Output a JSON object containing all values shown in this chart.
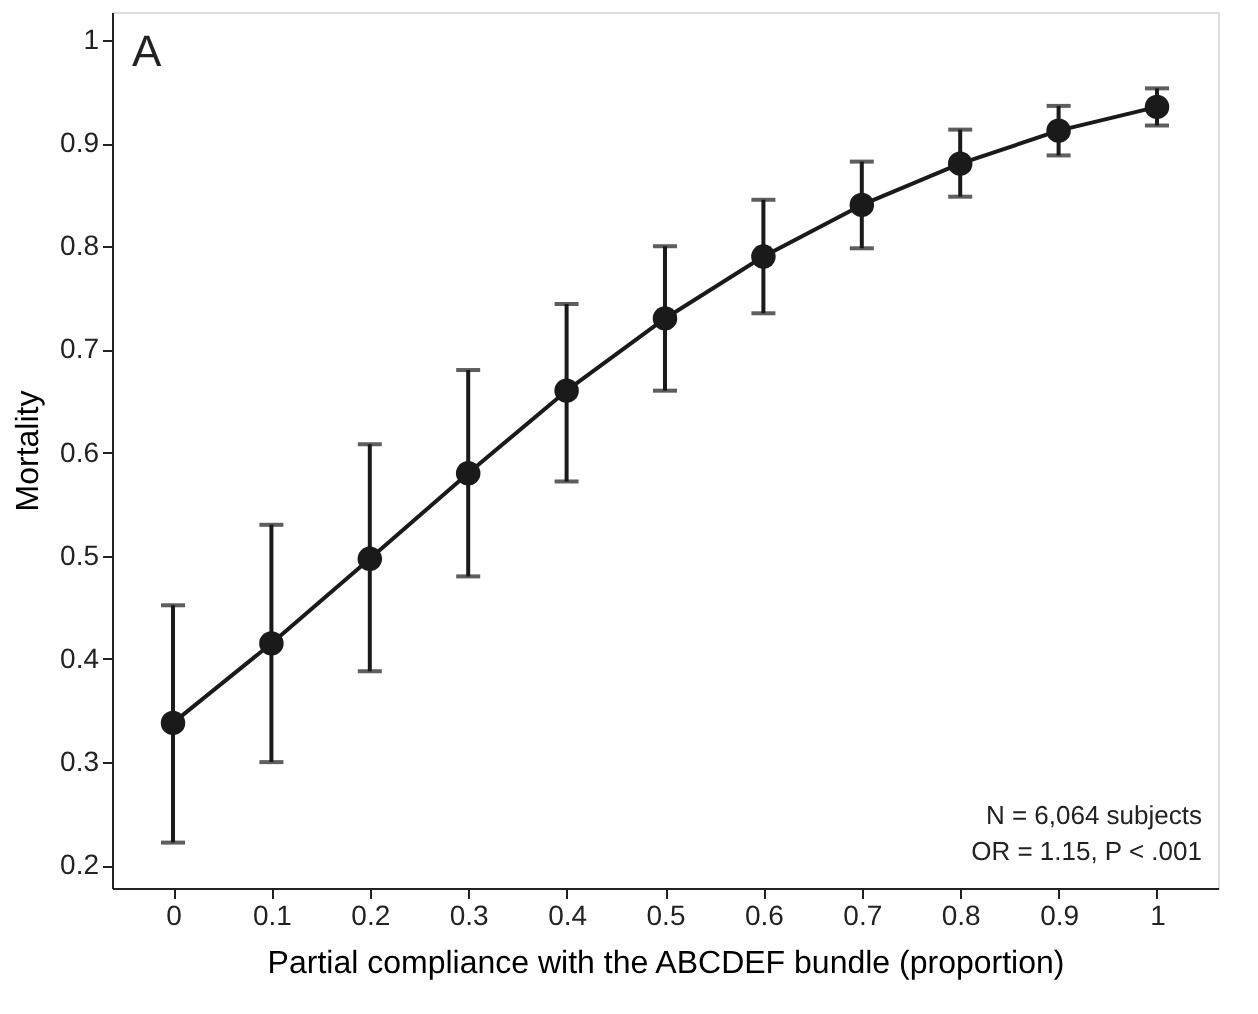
{
  "chart_data": {
    "type": "line",
    "xlabel": "Partial compliance with the ABCDEF bundle (proportion)",
    "ylabel": "Mortality",
    "x": [
      0,
      0.1,
      0.2,
      0.3,
      0.4,
      0.5,
      0.6,
      0.7,
      0.8,
      0.9,
      1
    ],
    "series": [
      {
        "color": "#1a1a1a",
        "values": [
          0.338,
          0.415,
          0.497,
          0.58,
          0.66,
          0.73,
          0.79,
          0.84,
          0.88,
          0.912,
          0.935
        ],
        "errors": [
          [
            0.222,
            0.452
          ],
          [
            0.3,
            0.53
          ],
          [
            0.388,
            0.608
          ],
          [
            0.48,
            0.68
          ],
          [
            0.572,
            0.744
          ],
          [
            0.66,
            0.8
          ],
          [
            0.735,
            0.845
          ],
          [
            0.798,
            0.882
          ],
          [
            0.848,
            0.913
          ],
          [
            0.888,
            0.936
          ],
          [
            0.917,
            0.953
          ]
        ]
      }
    ],
    "xlim": [
      -0.062,
      1.062
    ],
    "ylim": [
      0.178,
      1.027
    ],
    "xticks": [
      0,
      0.1,
      0.2,
      0.3,
      0.4,
      0.5,
      0.6,
      0.7,
      0.8,
      0.9,
      1
    ],
    "yticks": [
      0.2,
      0.3,
      0.4,
      0.5,
      0.6,
      0.7,
      0.8,
      0.9,
      1
    ],
    "grid": false,
    "marker": "circle",
    "line_style": "solid",
    "annotations": [
      "A",
      "N = 6,064 subjects",
      "OR = 1.15, P < .001"
    ]
  }
}
